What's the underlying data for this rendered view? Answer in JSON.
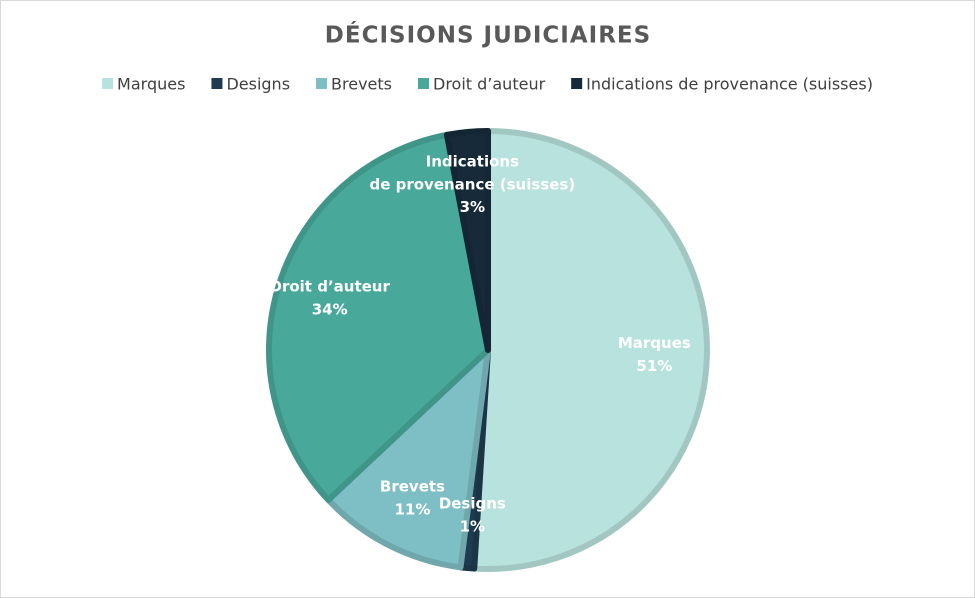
{
  "chart_data": {
    "type": "pie",
    "title": "DÉCISIONS JUDICIAIRES",
    "categories": [
      "Marques",
      "Designs",
      "Brevets",
      "Droit d’auteur",
      "Indications de provenance (suisses)"
    ],
    "values": [
      51,
      1,
      11,
      34,
      3
    ],
    "value_labels": [
      "51%",
      "1%",
      "11%",
      "34%",
      "3%"
    ],
    "colors": [
      "#b8e2dd",
      "#1f3b4f",
      "#7ebec5",
      "#48a99b",
      "#172a3a"
    ],
    "legend": "top"
  }
}
